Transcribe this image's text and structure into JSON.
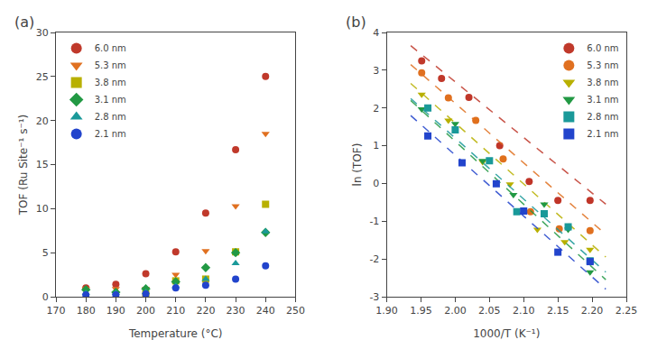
{
  "chart_data": [
    {
      "type": "scatter",
      "title": "(a)",
      "xlabel": "Temperature (°C)",
      "ylabel": "TOF (Ru Site⁻¹ s⁻¹)",
      "xlim": [
        170,
        250
      ],
      "ylim": [
        0,
        30
      ],
      "xticks": [
        170,
        180,
        190,
        200,
        210,
        220,
        230,
        240,
        250
      ],
      "yticks": [
        0,
        5,
        10,
        15,
        20,
        25,
        30
      ],
      "grid": false,
      "legend": "upper left",
      "series": [
        {
          "name": "6.0 nm",
          "color": "#c0392b",
          "marker": "circle",
          "x": [
            180,
            190,
            200,
            210,
            220,
            230,
            240
          ],
          "values": [
            1.0,
            1.4,
            2.6,
            5.1,
            9.5,
            16.7,
            25.0
          ]
        },
        {
          "name": "5.3 nm",
          "color": "#e07020",
          "marker": "triangle-down",
          "x": [
            180,
            190,
            200,
            210,
            220,
            230,
            240
          ],
          "values": [
            0.9,
            0.9,
            0.9,
            2.5,
            5.2,
            10.3,
            18.5
          ]
        },
        {
          "name": "3.8 nm",
          "color": "#b8b000",
          "marker": "square",
          "x": [
            200,
            210,
            220,
            230,
            240
          ],
          "values": [
            0.3,
            1.8,
            2.0,
            5.1,
            10.5
          ]
        },
        {
          "name": "3.1 nm",
          "color": "#229944",
          "marker": "diamond",
          "x": [
            180,
            190,
            200,
            210,
            220,
            230,
            240
          ],
          "values": [
            0.8,
            0.5,
            0.9,
            1.7,
            3.3,
            5.0,
            7.3
          ]
        },
        {
          "name": "2.8 nm",
          "color": "#1a9999",
          "marker": "triangle-up",
          "x": [
            180,
            190,
            200,
            210,
            220,
            230,
            240
          ],
          "values": [
            0.4,
            0.4,
            0.5,
            1.2,
            2.0,
            3.8,
            7.4
          ]
        },
        {
          "name": "2.1 nm",
          "color": "#2244cc",
          "marker": "circle",
          "x": [
            180,
            190,
            200,
            210,
            220,
            230,
            240
          ],
          "values": [
            0.2,
            0.2,
            0.3,
            1.0,
            1.3,
            2.0,
            3.5
          ]
        }
      ]
    },
    {
      "type": "scatter",
      "title": "(b)",
      "xlabel": "1000/T (K⁻¹)",
      "ylabel": "ln (TOF)",
      "xlim": [
        1.9,
        2.25
      ],
      "ylim": [
        -3,
        4
      ],
      "xticks": [
        {
          "value": 1.9,
          "label": "1.90"
        },
        1.95,
        {
          "value": 2.0,
          "label": "2.00"
        },
        2.05,
        {
          "value": 2.1,
          "label": "2.10"
        },
        2.15,
        {
          "value": 2.2,
          "label": "2.20"
        },
        2.25
      ],
      "yticks": [
        -3,
        -2,
        -1,
        0,
        1,
        2,
        3,
        4
      ],
      "grid": false,
      "legend": "upper right",
      "series": [
        {
          "name": "6.0 nm",
          "color": "#c0392b",
          "marker": "circle",
          "x": [
            1.951,
            1.98,
            2.02,
            2.065,
            2.108,
            2.15,
            2.197
          ],
          "values": [
            3.25,
            2.78,
            2.28,
            1.0,
            0.05,
            -0.45,
            -0.45
          ],
          "fit_x": [
            1.935,
            2.22
          ],
          "fit_y": [
            3.65,
            -0.55
          ],
          "line_style": "dash"
        },
        {
          "name": "5.3 nm",
          "color": "#e07020",
          "marker": "circle",
          "x": [
            1.951,
            1.99,
            2.03,
            2.07,
            2.11,
            2.152,
            2.197
          ],
          "values": [
            2.93,
            2.27,
            1.67,
            0.65,
            -0.75,
            -1.2,
            -1.25
          ],
          "fit_x": [
            1.935,
            2.22
          ],
          "fit_y": [
            3.15,
            -1.35
          ],
          "line_style": "dash"
        },
        {
          "name": "3.8 nm",
          "color": "#b8b000",
          "marker": "triangle-down",
          "x": [
            1.951,
            1.99,
            2.04,
            2.08,
            2.12,
            2.16,
            2.197
          ],
          "values": [
            2.36,
            1.67,
            0.57,
            -0.02,
            -1.22,
            -1.55,
            -1.75
          ],
          "fit_x": [
            1.935,
            2.22
          ],
          "fit_y": [
            2.65,
            -1.95
          ],
          "line_style": "dash"
        },
        {
          "name": "3.1 nm",
          "color": "#229944",
          "marker": "triangle-down",
          "x": [
            1.951,
            2.0,
            2.04,
            2.085,
            2.13,
            2.165,
            2.197
          ],
          "values": [
            1.97,
            1.58,
            0.6,
            -0.3,
            -0.55,
            -1.22,
            -2.35
          ],
          "fit_x": [
            1.935,
            2.22
          ],
          "fit_y": [
            2.2,
            -2.55
          ],
          "line_style": "dash"
        },
        {
          "name": "2.8 nm",
          "color": "#1a9999",
          "marker": "square",
          "x": [
            1.96,
            2.0,
            2.05,
            2.09,
            2.13,
            2.165,
            2.197
          ],
          "values": [
            2.0,
            1.42,
            0.6,
            -0.75,
            -0.8,
            -1.15,
            -2.05
          ],
          "fit_x": [
            1.935,
            2.22
          ],
          "fit_y": [
            2.25,
            -2.35
          ],
          "line_style": "dash"
        },
        {
          "name": "2.1 nm",
          "color": "#2244cc",
          "marker": "square",
          "x": [
            1.96,
            2.01,
            2.06,
            2.1,
            2.15,
            2.197
          ],
          "values": [
            1.26,
            0.55,
            -0.01,
            -0.73,
            -1.82,
            -2.07
          ],
          "fit_x": [
            1.935,
            2.22
          ],
          "fit_y": [
            1.8,
            -2.8
          ],
          "line_style": "dash"
        }
      ]
    }
  ]
}
